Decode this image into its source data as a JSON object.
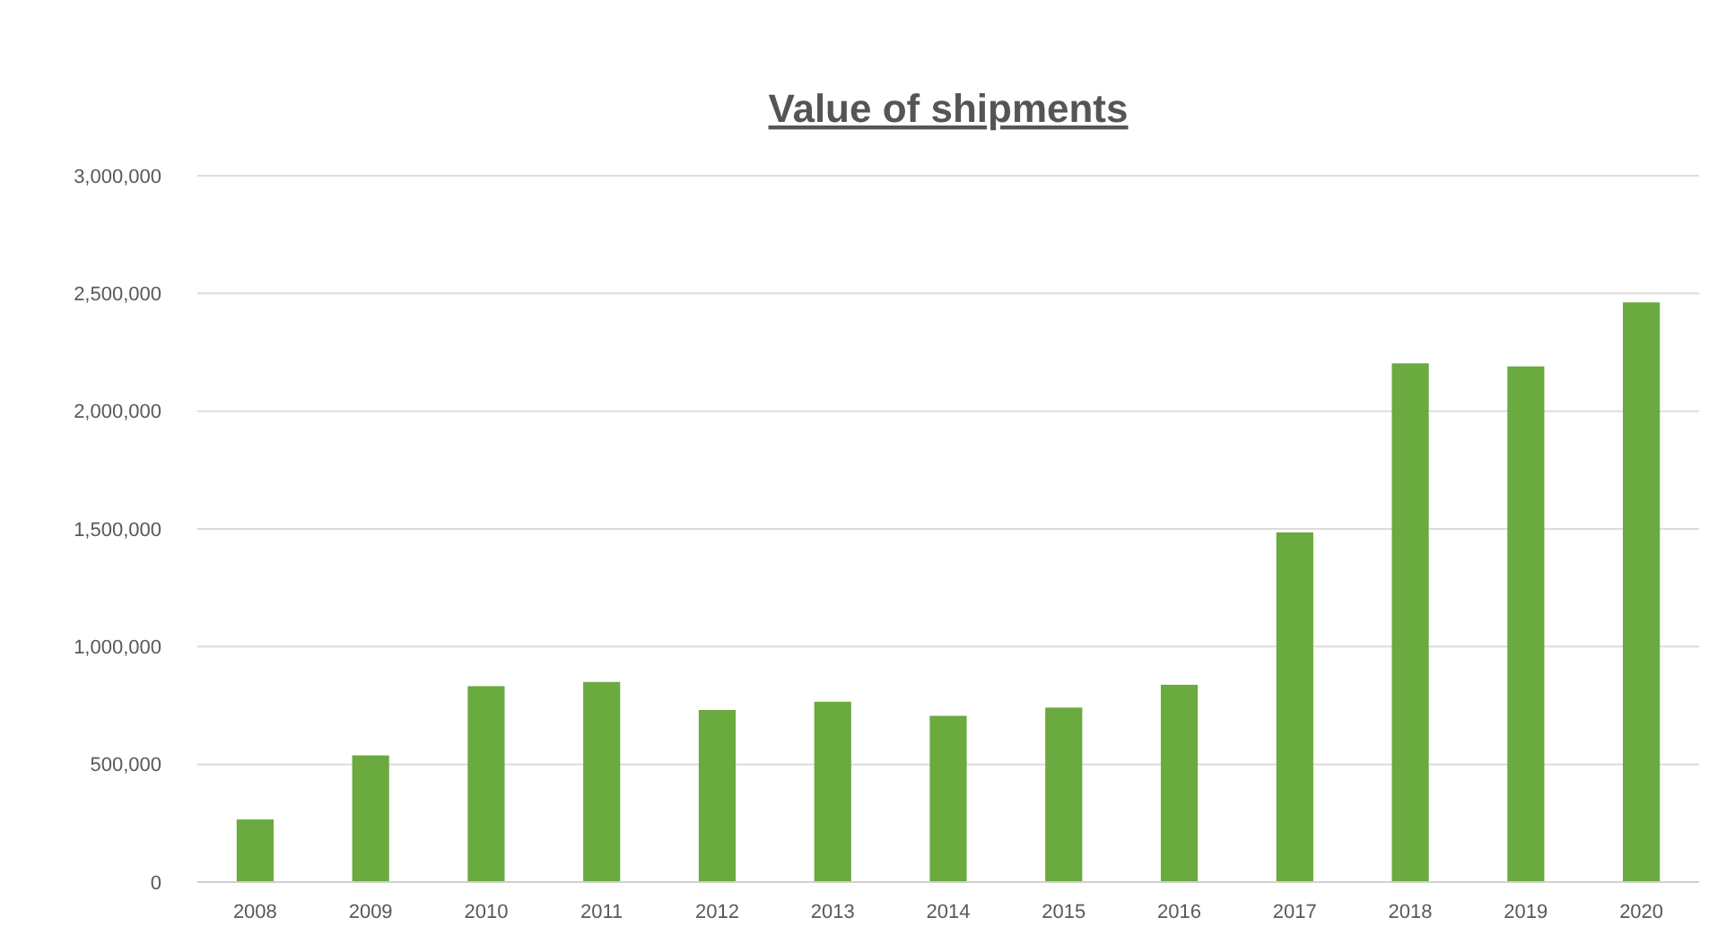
{
  "chart_data": {
    "type": "bar",
    "title": "Value of shipments",
    "categories": [
      "2008",
      "2009",
      "2010",
      "2011",
      "2012",
      "2013",
      "2014",
      "2015",
      "2016",
      "2017",
      "2018",
      "2019",
      "2020"
    ],
    "values": [
      266000,
      538000,
      832000,
      850000,
      731000,
      766000,
      706000,
      741000,
      838000,
      1485000,
      2203000,
      2190000,
      2462000
    ],
    "color": "#6aaa3e",
    "ylim": [
      0,
      3000000
    ],
    "yticks": [
      {
        "value": 0,
        "label": "0"
      },
      {
        "value": 500000,
        "label": "500,000"
      },
      {
        "value": 1000000,
        "label": "1,000,000"
      },
      {
        "value": 1500000,
        "label": "1,500,000"
      },
      {
        "value": 2000000,
        "label": "2,000,000"
      },
      {
        "value": 2500000,
        "label": "2,500,000"
      },
      {
        "value": 3000000,
        "label": "3,000,000"
      }
    ],
    "grid": "y"
  }
}
